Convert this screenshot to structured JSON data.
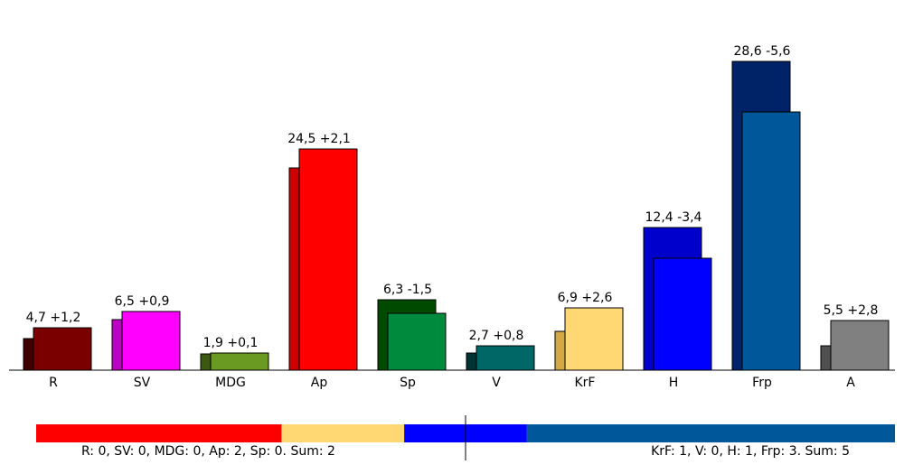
{
  "chart_data": {
    "type": "bar",
    "categories": [
      "R",
      "SV",
      "MDG",
      "Ap",
      "Sp",
      "V",
      "KrF",
      "H",
      "Frp",
      "A"
    ],
    "values": [
      4.7,
      6.5,
      1.9,
      24.5,
      6.3,
      2.7,
      6.9,
      12.4,
      28.6,
      5.5
    ],
    "value_labels": [
      "4,7 +1,2",
      "6,5 +0,9",
      "1,9 +0,1",
      "24,5 +2,1",
      "6,3 -1,5",
      "2,7 +0,8",
      "6,9 +2,6",
      "12,4 -3,4",
      "28,6 -5,6",
      "5,5 +2,8"
    ],
    "previous": [
      3.5,
      5.6,
      1.8,
      22.4,
      7.8,
      1.9,
      4.3,
      15.8,
      34.2,
      2.7
    ],
    "colors": [
      "#7a0000",
      "#ff00ff",
      "#6b9a22",
      "#ff0000",
      "#008a3e",
      "#006666",
      "#ffd773",
      "#0000ff",
      "#005799",
      "#808080"
    ],
    "previous_colors": [
      "#3d0000",
      "#c000c0",
      "#3b5a10",
      "#cc0000",
      "#004a00",
      "#003333",
      "#d4a843",
      "#0000cc",
      "#002266",
      "#505050"
    ],
    "ylim": [
      0,
      41
    ],
    "seats": [
      {
        "value": 2,
        "color": "#ff0000"
      },
      {
        "value": 1,
        "color": "#ffd773"
      },
      {
        "value": 1,
        "color": "#0000ff"
      },
      {
        "value": 3,
        "color": "#005799"
      }
    ],
    "seat_text_left": "R: 0, SV: 0, MDG: 0, Ap: 2, Sp: 0. Sum: 2",
    "seat_text_right": "KrF: 1, V: 0, H: 1, Frp: 3. Sum: 5"
  }
}
